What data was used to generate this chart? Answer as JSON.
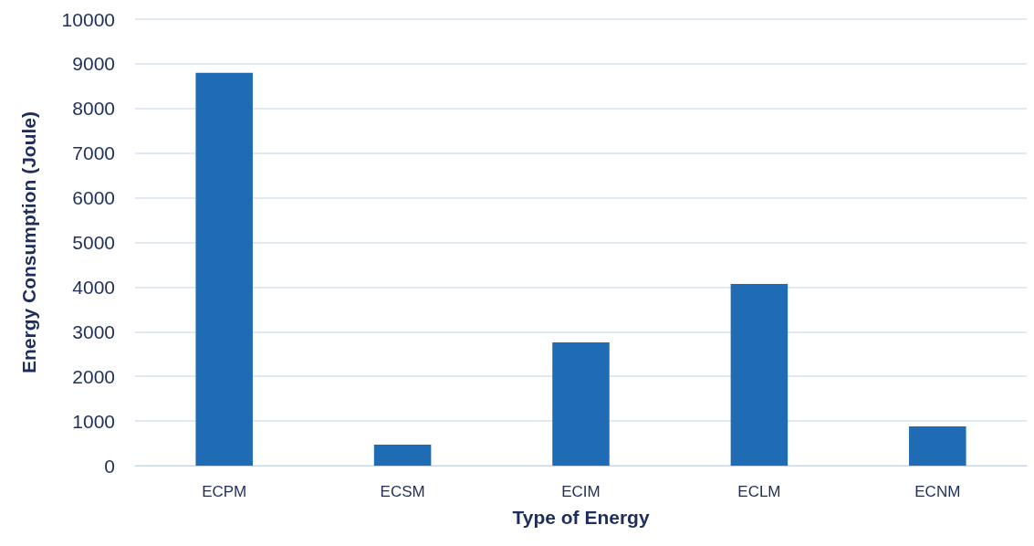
{
  "chart_data": {
    "type": "bar",
    "xlabel": "Type of Energy",
    "ylabel": "Energy Consumption (Joule)",
    "categories": [
      "ECPM",
      "ECSM",
      "ECIM",
      "ECLM",
      "ECNM"
    ],
    "values": [
      8800,
      470,
      2760,
      4070,
      880
    ],
    "color": "#1f6cb4",
    "ylim": [
      0,
      10000
    ],
    "yticks": [
      0,
      1000,
      2000,
      3000,
      4000,
      5000,
      6000,
      7000,
      8000,
      9000,
      10000
    ],
    "grid": "y"
  }
}
